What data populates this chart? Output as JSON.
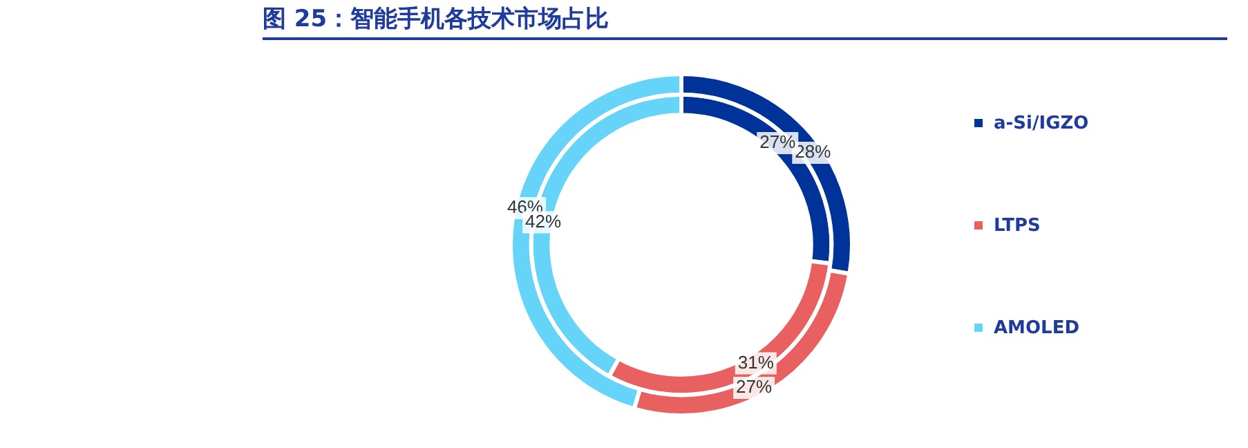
{
  "chart_data": {
    "type": "donut",
    "title": "图 25：智能手机各技术市场占比",
    "categories": [
      "a-Si/IGZO",
      "LTPS",
      "AMOLED"
    ],
    "colors": [
      "#003399",
      "#e8605f",
      "#66d4f8"
    ],
    "series": [
      {
        "values": [
          28,
          27,
          46
        ],
        "value_labels": [
          "28%",
          "27%",
          "46%"
        ]
      },
      {
        "values": [
          27,
          31,
          42
        ],
        "value_labels": [
          "27%",
          "31%",
          "42%"
        ]
      }
    ],
    "legend": "right"
  }
}
